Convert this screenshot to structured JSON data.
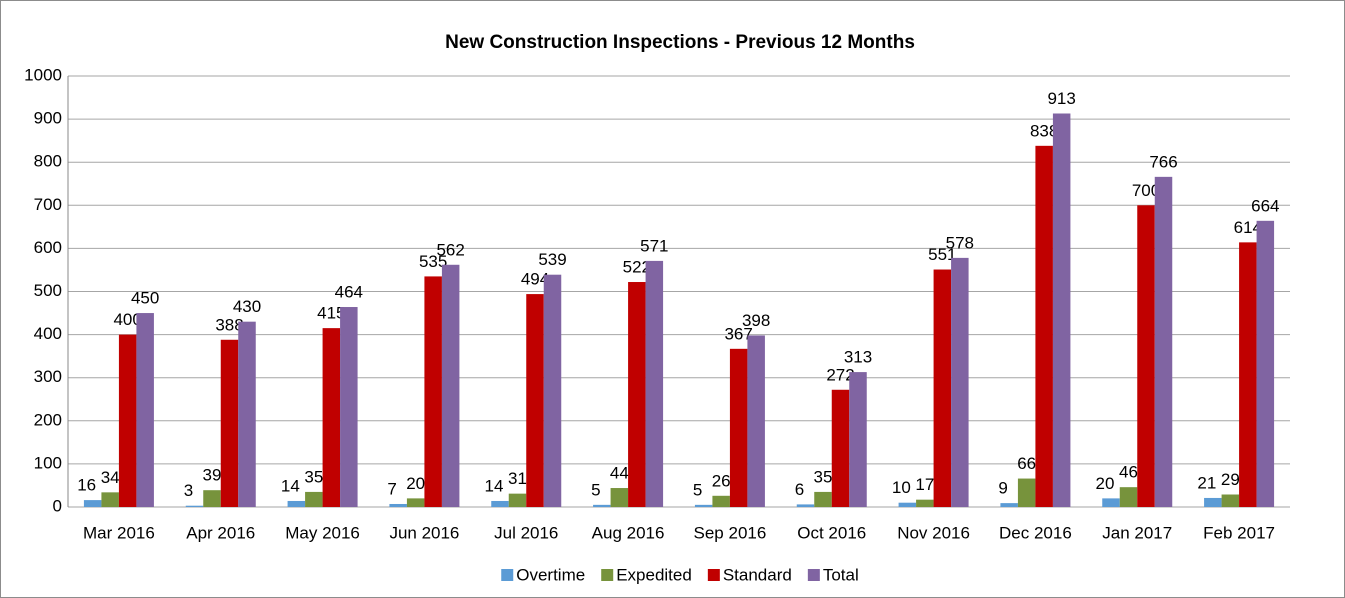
{
  "chart_data": {
    "type": "bar",
    "title": "New Construction  Inspections - Previous 12 Months",
    "categories": [
      "Mar 2016",
      "Apr 2016",
      "May 2016",
      "Jun 2016",
      "Jul 2016",
      "Aug 2016",
      "Sep 2016",
      "Oct 2016",
      "Nov 2016",
      "Dec 2016",
      "Jan 2017",
      "Feb 2017"
    ],
    "series": [
      {
        "name": "Overtime",
        "color": "#5b9bd5",
        "values": [
          16,
          3,
          14,
          7,
          14,
          5,
          5,
          6,
          10,
          9,
          20,
          21
        ]
      },
      {
        "name": "Expedited",
        "color": "#77933c",
        "values": [
          34,
          39,
          35,
          20,
          31,
          44,
          26,
          35,
          17,
          66,
          46,
          29
        ]
      },
      {
        "name": "Standard",
        "color": "#c00000",
        "values": [
          400,
          388,
          415,
          535,
          494,
          522,
          367,
          272,
          551,
          838,
          700,
          614
        ]
      },
      {
        "name": "Total",
        "color": "#8064a2",
        "values": [
          450,
          430,
          464,
          562,
          539,
          571,
          398,
          313,
          578,
          913,
          766,
          664
        ]
      }
    ],
    "ylim": [
      0,
      1000
    ],
    "yticks": [
      0,
      100,
      200,
      300,
      400,
      500,
      600,
      700,
      800,
      900,
      1000
    ],
    "grid": true,
    "legend": "bottom"
  }
}
